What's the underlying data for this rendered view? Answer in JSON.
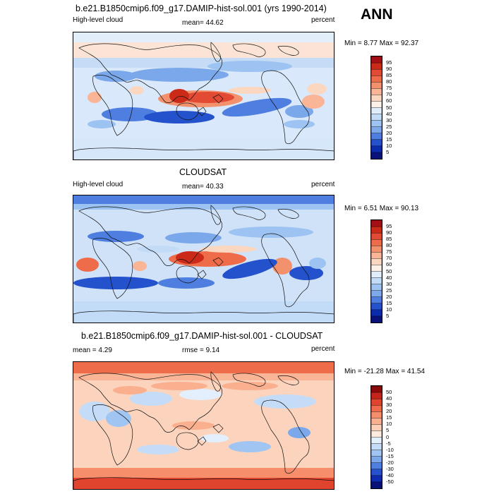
{
  "season": "ANN",
  "chart_data": [
    {
      "type": "heatmap",
      "title": "b.e21.B1850cmip6.f09_g17.DAMIP-hist-sol.001 (yrs 1990-2014)",
      "left_label": "High-level cloud",
      "center_label": "mean=  44.62",
      "right_label": "percent",
      "stats": "Min =   8.77 Max =  92.37",
      "colorbar_levels": [
        "95",
        "90",
        "85",
        "80",
        "75",
        "70",
        "60",
        "50",
        "40",
        "30",
        "25",
        "20",
        "15",
        "10",
        "5"
      ],
      "colorbar_colors": [
        "#a50f15",
        "#cb2a18",
        "#e34a33",
        "#ef6c4a",
        "#f4916d",
        "#f9b596",
        "#fcd7c0",
        "#fdf0e6",
        "#e0edfb",
        "#c2dbf7",
        "#9cc3f1",
        "#7ba9ea",
        "#4d7ee0",
        "#2452cc",
        "#0c2cb0",
        "#08127a"
      ],
      "value_range": [
        8.77,
        92.37
      ],
      "mean": 44.62
    },
    {
      "type": "heatmap",
      "title": "CLOUDSAT",
      "left_label": "High-level cloud",
      "center_label": "mean=  40.33",
      "right_label": "percent",
      "stats": "Min =   6.51 Max =  90.13",
      "colorbar_levels": [
        "95",
        "90",
        "85",
        "80",
        "75",
        "70",
        "60",
        "50",
        "40",
        "30",
        "25",
        "20",
        "15",
        "10",
        "5"
      ],
      "colorbar_colors": [
        "#a50f15",
        "#cb2a18",
        "#e34a33",
        "#ef6c4a",
        "#f4916d",
        "#f9b596",
        "#fcd7c0",
        "#fdf0e6",
        "#e0edfb",
        "#c2dbf7",
        "#9cc3f1",
        "#7ba9ea",
        "#4d7ee0",
        "#2452cc",
        "#0c2cb0",
        "#08127a"
      ],
      "value_range": [
        6.51,
        90.13
      ],
      "mean": 40.33
    },
    {
      "type": "heatmap",
      "title": "b.e21.B1850cmip6.f09_g17.DAMIP-hist-sol.001 - CLOUDSAT",
      "left_label": "mean =   4.29",
      "center_label": "rmse =   9.14",
      "right_label": "percent",
      "stats": "Min = -21.28 Max =  41.54",
      "colorbar_levels": [
        "50",
        "40",
        "30",
        "20",
        "15",
        "10",
        "5",
        "0",
        "-5",
        "-10",
        "-15",
        "-20",
        "-30",
        "-40",
        "-50"
      ],
      "colorbar_colors": [
        "#8c0a0a",
        "#c4241c",
        "#e0442e",
        "#ef6a4a",
        "#f68e6c",
        "#faaf8f",
        "#fcd0b6",
        "#fdecde",
        "#e3effc",
        "#c5dcf8",
        "#a1c5f2",
        "#7ba8ea",
        "#4f7fe0",
        "#2552cc",
        "#0e2bb2",
        "#091178"
      ],
      "value_range": [
        -21.28,
        41.54
      ],
      "mean": 4.29,
      "rmse": 9.14
    }
  ]
}
